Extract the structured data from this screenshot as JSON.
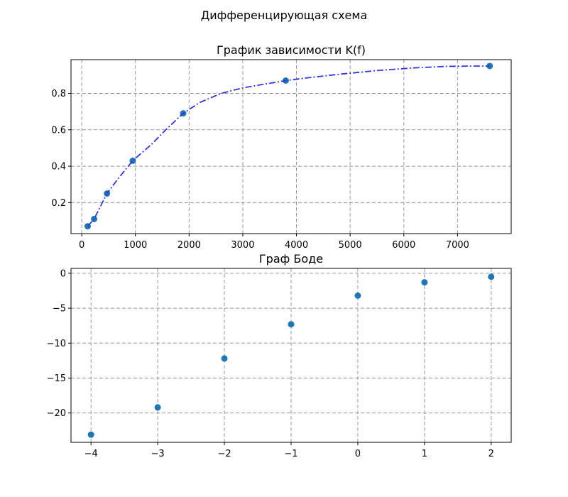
{
  "figure": {
    "suptitle": "Дифференцирующая схема"
  },
  "chart_data": [
    {
      "type": "line",
      "title": "График зависимости K(f)",
      "xlabel": "",
      "ylabel": "",
      "xlim": [
        -200,
        8000
      ],
      "ylim": [
        0.03,
        0.985
      ],
      "grid": true,
      "x_ticks": [
        0,
        1000,
        2000,
        3000,
        4000,
        5000,
        6000,
        7000
      ],
      "x_tick_labels": [
        "0",
        "1000",
        "2000",
        "3000",
        "4000",
        "5000",
        "6000",
        "7000"
      ],
      "y_ticks": [
        0.2,
        0.4,
        0.6,
        0.8
      ],
      "y_tick_labels": [
        "0.2",
        "0.4",
        "0.6",
        "0.8"
      ],
      "series": [
        {
          "kind": "scatter",
          "color": "#1f77b4",
          "x": [
            110,
            230,
            470,
            950,
            1890,
            3800,
            7600
          ],
          "y": [
            0.07,
            0.11,
            0.25,
            0.43,
            0.69,
            0.87,
            0.95
          ]
        },
        {
          "kind": "line",
          "style": "dashdot",
          "color": "#3535e0",
          "x": [
            110,
            230,
            470,
            700,
            950,
            1300,
            1600,
            1890,
            2200,
            2600,
            3000,
            3400,
            3800,
            4200,
            4800,
            5500,
            6200,
            6800,
            7300,
            7600
          ],
          "y": [
            0.07,
            0.11,
            0.25,
            0.34,
            0.43,
            0.52,
            0.61,
            0.69,
            0.75,
            0.8,
            0.83,
            0.85,
            0.87,
            0.885,
            0.905,
            0.925,
            0.94,
            0.948,
            0.95,
            0.95
          ]
        }
      ]
    },
    {
      "type": "scatter",
      "title": "Граф Боде",
      "xlabel": "",
      "ylabel": "",
      "xlim": [
        -4.3,
        2.3
      ],
      "ylim": [
        -24.2,
        0.7
      ],
      "grid": true,
      "x_ticks": [
        -4,
        -3,
        -2,
        -1,
        0,
        1,
        2
      ],
      "x_tick_labels": [
        "−4",
        "−3",
        "−2",
        "−1",
        "0",
        "1",
        "2"
      ],
      "y_ticks": [
        0,
        -5,
        -10,
        -15,
        -20
      ],
      "y_tick_labels": [
        "0",
        "−5",
        "−10",
        "−15",
        "−20"
      ],
      "series": [
        {
          "kind": "scatter",
          "color": "#1f77b4",
          "x": [
            -4,
            -3,
            -2,
            -1,
            0,
            1,
            2
          ],
          "y": [
            -23.1,
            -19.2,
            -12.2,
            -7.3,
            -3.2,
            -1.3,
            -0.5
          ]
        }
      ]
    }
  ]
}
